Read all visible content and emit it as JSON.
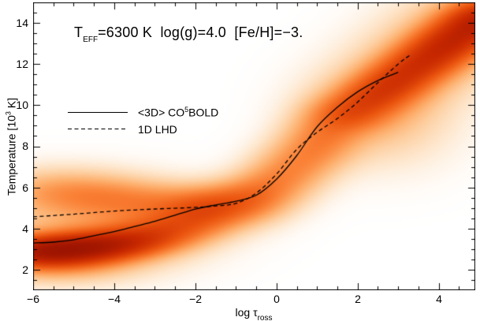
{
  "title": {
    "prefix": "T",
    "subscript": "EFF",
    "suffix": "=6300 K  log(g)=4.0  [Fe/H]=−3."
  },
  "legend": {
    "item1": {
      "pre": "<3D> CO",
      "sup": "5",
      "post": "BOLD",
      "style": "solid"
    },
    "item2": {
      "label": "1D LHD",
      "style": "dashed"
    }
  },
  "axes": {
    "xlabel_prefix": "log ",
    "xlabel_tau": "τ",
    "xlabel_subscript": "ross",
    "ylabel_prefix": "Temperature [10",
    "ylabel_sup": "3",
    "ylabel_suffix": " K]",
    "x_tick_labels": [
      "−6",
      "−4",
      "−2",
      "0",
      "2",
      "4"
    ],
    "y_tick_labels": [
      "14",
      "12",
      "10",
      "8",
      "6",
      "4",
      "2"
    ]
  },
  "chart_data": {
    "type": "line+heatmap",
    "title": "T_EFF=6300 K  log(g)=4.0  [Fe/H]=-3.",
    "xlabel": "log tau_ross",
    "ylabel": "Temperature [10^3 K]",
    "xlim": [
      -6,
      4.9
    ],
    "ylim": [
      1,
      15
    ],
    "x_major_ticks": [
      -6,
      -4,
      -2,
      0,
      2,
      4
    ],
    "y_major_ticks": [
      2,
      4,
      6,
      8,
      10,
      12,
      14
    ],
    "minor_tick_step": 0.5,
    "grid": false,
    "legend_position": "upper-left-inside",
    "ink_color": "#000000",
    "series": [
      {
        "name": "<3D> CO5BOLD",
        "style": "solid",
        "color": "#000000",
        "x": [
          -6,
          -5.5,
          -5,
          -4.5,
          -4,
          -3.5,
          -3,
          -2.5,
          -2,
          -1.5,
          -1,
          -0.5,
          0,
          0.5,
          1,
          1.5,
          2,
          2.5,
          3
        ],
        "y": [
          3.3,
          3.34,
          3.45,
          3.65,
          3.85,
          4.1,
          4.35,
          4.65,
          4.95,
          5.15,
          5.33,
          5.62,
          6.4,
          7.55,
          8.95,
          9.9,
          10.65,
          11.2,
          11.6
        ]
      },
      {
        "name": "1D LHD",
        "style": "dashed",
        "color": "#000000",
        "x": [
          -6,
          -5,
          -4,
          -3,
          -2,
          -1.5,
          -1,
          -0.5,
          0,
          0.5,
          1,
          1.5,
          2,
          2.5,
          3,
          3.3
        ],
        "y": [
          4.57,
          4.7,
          4.85,
          4.95,
          5.03,
          5.1,
          5.22,
          5.72,
          6.65,
          7.85,
          8.68,
          9.35,
          10.15,
          11.1,
          12.0,
          12.45
        ]
      }
    ],
    "density_cloud": {
      "description": "3D model temperature distribution vs optical depth; white=low, dark red=high density",
      "colormap": [
        [
          0.0,
          255,
          255,
          255
        ],
        [
          0.1,
          254,
          236,
          215
        ],
        [
          0.25,
          253,
          208,
          162
        ],
        [
          0.4,
          253,
          174,
          107
        ],
        [
          0.55,
          250,
          130,
          55
        ],
        [
          0.7,
          235,
          85,
          15
        ],
        [
          0.85,
          200,
          40,
          0
        ],
        [
          1.0,
          130,
          8,
          0
        ]
      ],
      "blobs": [
        [
          -6.2,
          2.85,
          0.8,
          0.5,
          1.0
        ],
        [
          -5.4,
          2.95,
          0.8,
          0.5,
          1.0
        ],
        [
          -4.6,
          3.05,
          0.8,
          0.5,
          0.95
        ],
        [
          -3.8,
          3.3,
          0.8,
          0.5,
          0.8
        ],
        [
          -3.0,
          3.7,
          0.8,
          0.55,
          0.62
        ],
        [
          -2.2,
          4.2,
          0.8,
          0.6,
          0.5
        ],
        [
          -5.5,
          3.0,
          1.5,
          1.0,
          0.3
        ],
        [
          -4.0,
          3.3,
          1.5,
          1.0,
          0.25
        ],
        [
          -5.5,
          2.15,
          1.2,
          0.55,
          0.3
        ],
        [
          -5.6,
          5.85,
          1.1,
          0.75,
          0.32
        ],
        [
          -4.6,
          5.6,
          1.1,
          0.75,
          0.28
        ],
        [
          -3.6,
          5.4,
          1.1,
          0.7,
          0.26
        ],
        [
          -2.7,
          5.2,
          1.0,
          0.65,
          0.28
        ],
        [
          -4.5,
          5.0,
          2.0,
          1.2,
          0.15
        ],
        [
          -1.8,
          4.95,
          0.7,
          0.65,
          0.5
        ],
        [
          -1.2,
          5.2,
          0.7,
          0.7,
          0.48
        ],
        [
          -0.6,
          5.55,
          0.6,
          0.8,
          0.45
        ],
        [
          0.0,
          6.3,
          0.6,
          0.95,
          0.45
        ],
        [
          0.6,
          7.3,
          0.6,
          1.0,
          0.45
        ],
        [
          1.2,
          8.5,
          0.6,
          1.0,
          0.5
        ],
        [
          1.8,
          9.6,
          0.6,
          0.6,
          0.6
        ],
        [
          2.4,
          10.45,
          0.6,
          0.6,
          0.7
        ],
        [
          3.0,
          11.25,
          0.6,
          0.6,
          0.8
        ],
        [
          3.6,
          12.1,
          0.6,
          0.6,
          0.9
        ],
        [
          4.2,
          12.95,
          0.6,
          0.6,
          1.0
        ],
        [
          4.8,
          13.8,
          0.6,
          0.6,
          1.05
        ],
        [
          5.3,
          14.5,
          0.6,
          0.6,
          1.05
        ],
        [
          2.0,
          9.8,
          1.0,
          1.4,
          0.28
        ],
        [
          3.0,
          11.2,
          1.0,
          1.5,
          0.3
        ],
        [
          4.0,
          12.9,
          1.0,
          1.5,
          0.32
        ],
        [
          4.9,
          14.0,
          0.9,
          1.4,
          0.32
        ],
        [
          2.8,
          8.8,
          1.2,
          1.5,
          0.15
        ]
      ]
    }
  }
}
